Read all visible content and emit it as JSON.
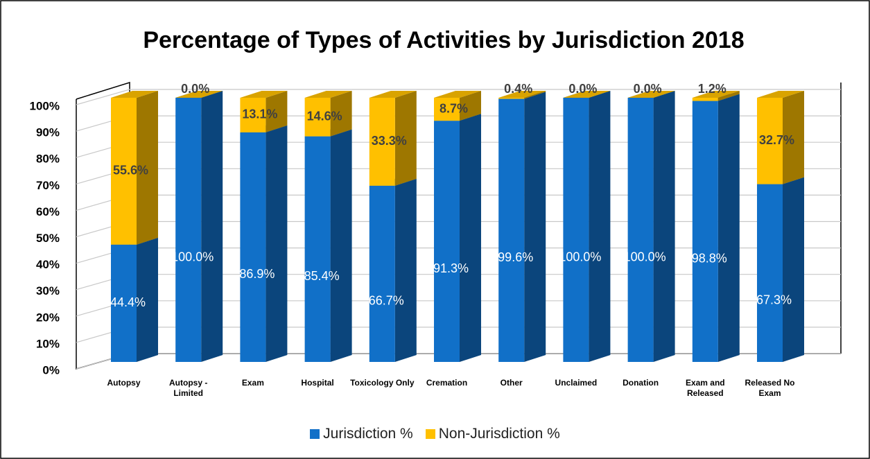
{
  "chart_data": {
    "type": "bar3d_stacked",
    "title": "Percentage of Types of Activities by Jurisdiction 2018",
    "categories": [
      "Autopsy",
      "Autopsy - Limited",
      "Exam",
      "Hospital",
      "Toxicology Only",
      "Cremation",
      "Other",
      "Unclaimed",
      "Donation",
      "Exam and Released",
      "Released No Exam"
    ],
    "series": [
      {
        "name": "Jurisdiction %",
        "color": "#1170c8",
        "values": [
          44.4,
          100,
          86.9,
          85.4,
          66.7,
          91.3,
          99.6,
          100,
          100,
          98.8,
          67.3
        ],
        "value_labels": [
          "44.4%",
          "100.0%",
          "86.9%",
          "85.4%",
          "66.7%",
          "91.3%",
          "99.6%",
          "100.0%",
          "100.0%",
          "98.8%",
          "67.3%"
        ]
      },
      {
        "name": "Non-Jurisdiction %",
        "color": "#ffc000",
        "values": [
          55.6,
          0,
          13.1,
          14.6,
          33.3,
          8.7,
          0.4,
          0,
          0,
          1.2,
          32.7
        ],
        "value_labels": [
          "55.6%",
          "0.0%",
          "13.1%",
          "14.6%",
          "33.3%",
          "8.7%",
          "0.4%",
          "0.0%",
          "0.0%",
          "1.2%",
          "32.7%"
        ]
      }
    ],
    "ylim": [
      0,
      100
    ],
    "yticks": [
      {
        "value": 0,
        "label": "0%"
      },
      {
        "value": 10,
        "label": "10%"
      },
      {
        "value": 20,
        "label": "20%"
      },
      {
        "value": 30,
        "label": "30%"
      },
      {
        "value": 40,
        "label": "40%"
      },
      {
        "value": 50,
        "label": "50%"
      },
      {
        "value": 60,
        "label": "60%"
      },
      {
        "value": 70,
        "label": "70%"
      },
      {
        "value": 80,
        "label": "80%"
      },
      {
        "value": 90,
        "label": "90%"
      },
      {
        "value": 100,
        "label": "100%"
      }
    ],
    "grid": true,
    "legend": "bottom"
  }
}
